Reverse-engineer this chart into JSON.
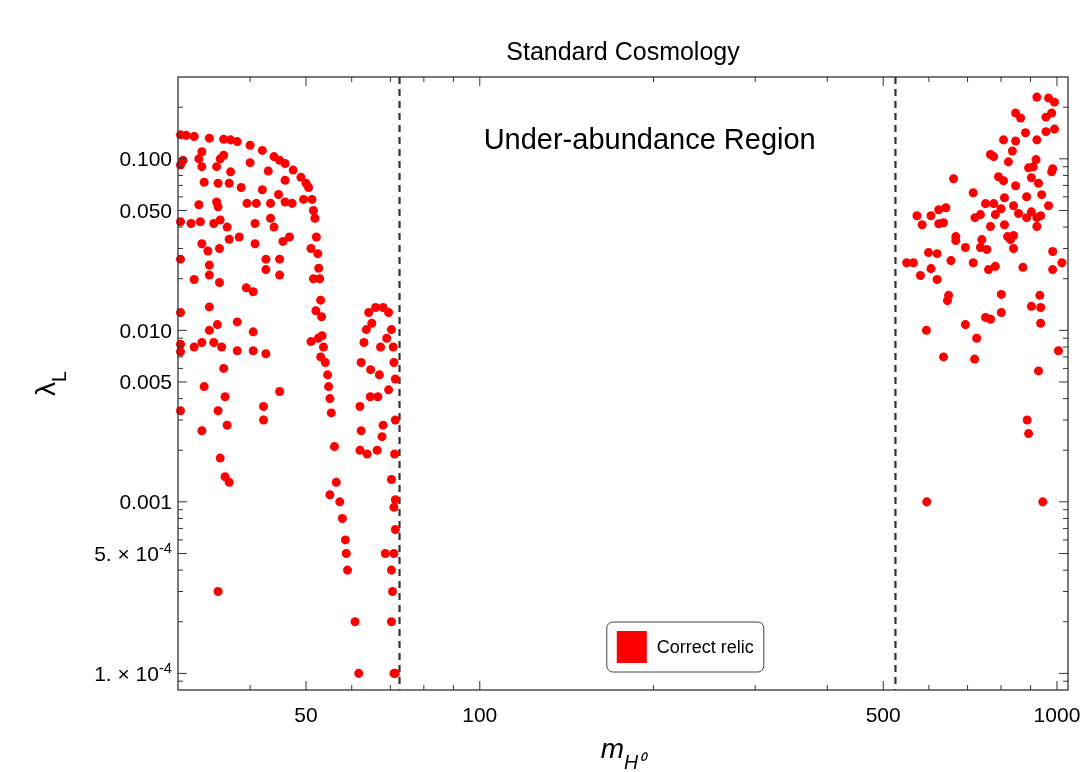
{
  "chart_data": {
    "type": "scatter",
    "title": "Standard Cosmology",
    "xlabel": "m$_{H⁰}$",
    "ylabel": "λ$_{L}$",
    "annotations": [
      "Under-abundance Region"
    ],
    "log": "xy",
    "grid": false,
    "legend": "bottom",
    "marker": "circle",
    "xlim": [
      30,
      1045
    ],
    "ylim": [
      8e-05,
      0.3
    ],
    "xticks": [
      {
        "value": 40,
        "label": null
      },
      50,
      {
        "value": 60,
        "label": null
      },
      {
        "value": 70,
        "label": null
      },
      {
        "value": 80,
        "label": null
      },
      {
        "value": 90,
        "label": null
      },
      100,
      {
        "value": 200,
        "label": null
      },
      {
        "value": 300,
        "label": null
      },
      {
        "value": 400,
        "label": null
      },
      500,
      {
        "value": 600,
        "label": null
      },
      {
        "value": 700,
        "label": null
      },
      {
        "value": 800,
        "label": null
      },
      {
        "value": 900,
        "label": null
      },
      1000
    ],
    "yticks": [
      {
        "value": 0.2,
        "label": null
      },
      {
        "value": 0.1,
        "label": "0.100"
      },
      {
        "value": 0.09,
        "label": null
      },
      {
        "value": 0.08,
        "label": null
      },
      {
        "value": 0.07,
        "label": null
      },
      {
        "value": 0.06,
        "label": null
      },
      {
        "value": 0.05,
        "label": "0.050"
      },
      {
        "value": 0.04,
        "label": null
      },
      {
        "value": 0.03,
        "label": null
      },
      {
        "value": 0.02,
        "label": null
      },
      {
        "value": 0.01,
        "label": "0.010"
      },
      {
        "value": 0.009,
        "label": null
      },
      {
        "value": 0.008,
        "label": null
      },
      {
        "value": 0.007,
        "label": null
      },
      {
        "value": 0.006,
        "label": null
      },
      {
        "value": 0.005,
        "label": "0.005"
      },
      {
        "value": 0.004,
        "label": null
      },
      {
        "value": 0.003,
        "label": null
      },
      {
        "value": 0.002,
        "label": null
      },
      {
        "value": 0.001,
        "label": "0.001"
      },
      {
        "value": 0.0009,
        "label": null
      },
      {
        "value": 0.0008,
        "label": null
      },
      {
        "value": 0.0007,
        "label": null
      },
      {
        "value": 0.0006,
        "label": null
      },
      {
        "value": 0.0005,
        "label": "5. × 10$^{-4}$"
      },
      {
        "value": 0.0004,
        "label": null
      },
      {
        "value": 0.0003,
        "label": null
      },
      {
        "value": 0.0002,
        "label": null
      },
      {
        "value": 0.0001,
        "label": "1. × 10$^{-4}$"
      },
      {
        "value": 9e-05,
        "label": null
      }
    ],
    "ref_lines": [
      {
        "axis": "x",
        "value": 72.6,
        "color": "#333333",
        "line_style": "dashed"
      },
      {
        "axis": "x",
        "value": 525,
        "color": "#333333",
        "line_style": "dashed"
      }
    ],
    "series": [
      {
        "name": "Correct relic",
        "color": "#ff0000",
        "x": [
          30.3,
          31,
          32,
          34,
          36,
          37,
          38,
          40,
          42,
          44,
          45,
          46,
          47.5,
          49,
          50,
          50.5,
          51.2,
          51.5,
          51.8,
          52.1,
          52.4,
          52.6,
          52.8,
          53,
          53.2,
          53.3,
          53.6,
          54,
          54.5,
          54.7,
          55,
          55.3,
          56,
          56.4,
          57.2,
          57.8,
          58.5,
          58.7,
          59,
          55,
          30.6,
          33,
          36,
          40,
          43,
          46,
          47.3,
          49.5,
          51,
          51.5,
          52,
          52.5,
          53,
          51,
          30.3,
          32.6,
          33,
          35,
          35.5,
          37,
          33.3,
          35.2,
          36.8,
          38.6,
          39.5,
          41,
          42,
          43.4,
          44.8,
          46,
          32.6,
          35,
          35.2,
          30.3,
          31.6,
          32.8,
          34.6,
          35.5,
          36.5,
          40.8,
          43.4,
          44,
          36.8,
          38.3,
          40.8,
          33,
          33.8,
          35.4,
          45.6,
          46.8,
          30.3,
          34,
          42.6,
          42.6,
          45,
          34,
          45,
          32,
          35.4,
          39.4,
          40.5,
          30.3,
          34,
          35.1,
          38,
          34,
          40.5,
          30.3,
          32,
          33,
          34.6,
          35.7,
          38,
          40.5,
          42.6,
          30.3,
          36,
          33.3,
          45,
          36.2,
          30.3,
          35.2,
          36.5,
          33,
          42.2,
          42.2,
          35.5,
          36.2,
          36.8,
          35.2,
          60.8,
          61.7,
          63.6,
          64.2,
          66,
          68,
          69.5,
          70.3,
          71,
          62.3,
          62,
          62.3,
          62,
          63.8,
          66.4,
          67.7,
          68,
          64.6,
          66.6,
          64.7,
          67.3,
          70.3,
          71,
          71.4,
          68.6,
          71,
          70.3,
          70.6,
          70.3,
          71,
          71.4,
          71.4,
          71.4,
          71.2,
          71.4,
          63,
          65,
          69,
          70.8,
          67,
          69.5,
          923,
          967,
          990,
          848,
          865,
          957,
          979,
          990,
          882,
          957,
          808,
          848,
          923,
          837,
          767,
          777,
          824,
          920,
          893,
          910,
          979,
          983,
          792,
          808,
          903,
          929,
          848,
          662,
          716,
          941,
          811,
          886,
          752,
          777,
          841,
          967,
          800,
          782,
          858,
          903,
          937,
          737,
          721,
          886,
          923,
          572,
          605,
          624,
          642,
          584,
          624,
          636,
          767,
          811,
          923,
          668,
          668,
          821,
          841,
          831,
          741,
          694,
          737,
          756,
          841,
          599,
          620,
          983,
          549,
          564,
          655,
          716,
          761,
          782,
          873,
          983,
          1020,
          605,
          580,
          620,
          801,
          934,
          649,
          646,
          903,
          937,
          801,
          752,
          767,
          694,
          937,
          594,
          726,
          1006,
          636,
          720,
          929,
          888,
          893,
          595,
          945
        ],
        "values": [
          0.138,
          0.137,
          0.135,
          0.132,
          0.13,
          0.129,
          0.126,
          0.12,
          0.112,
          0.103,
          0.098,
          0.094,
          0.086,
          0.078,
          0.072,
          0.068,
          0.058,
          0.05,
          0.045,
          0.035,
          0.028,
          0.023,
          0.02,
          0.015,
          0.012,
          0.0093,
          0.008,
          0.0065,
          0.0055,
          0.0047,
          0.004,
          0.0033,
          0.0021,
          0.0013,
          0.001,
          0.0008,
          0.0006,
          0.0005,
          0.0004,
          0.0011,
          0.098,
          0.11,
          0.105,
          0.095,
          0.085,
          0.075,
          0.055,
          0.058,
          0.03,
          0.02,
          0.013,
          0.009,
          0.007,
          0.0086,
          0.092,
          0.1,
          0.09,
          0.09,
          0.1,
          0.084,
          0.073,
          0.072,
          0.072,
          0.068,
          0.055,
          0.055,
          0.066,
          0.055,
          0.062,
          0.056,
          0.054,
          0.056,
          0.0525,
          0.043,
          0.042,
          0.043,
          0.042,
          0.044,
          0.04,
          0.042,
          0.045,
          0.04,
          0.034,
          0.035,
          0.032,
          0.032,
          0.029,
          0.03,
          0.033,
          0.035,
          0.026,
          0.024,
          0.026,
          0.0226,
          0.026,
          0.021,
          0.021,
          0.0198,
          0.019,
          0.0177,
          0.0168,
          0.0127,
          0.0137,
          0.0108,
          0.0112,
          0.01,
          0.0098,
          0.0083,
          0.008,
          0.0085,
          0.0085,
          0.008,
          0.0076,
          0.0076,
          0.0073,
          0.0075,
          0.006,
          0.0047,
          0.0044,
          0.0041,
          0.0034,
          0.0034,
          0.0028,
          0.0026,
          0.0036,
          0.003,
          0.0018,
          0.0014,
          0.0013,
          0.0003,
          0.0002,
          0.0001,
          0.0101,
          0.0127,
          0.0136,
          0.0136,
          0.0127,
          0.0101,
          0.0065,
          0.0065,
          0.0036,
          0.0026,
          0.002,
          0.0019,
          0.002,
          0.0024,
          0.0028,
          0.0041,
          0.0041,
          0.0059,
          0.008,
          0.00135,
          0.00093,
          0.00069,
          0.0005,
          0.0005,
          0.0004,
          0.0003,
          0.0002,
          0.0001,
          0.0001,
          0.0052,
          0.003,
          0.0019,
          0.00103,
          0.0085,
          0.011,
          0.009,
          0.008,
          0.0055,
          0.0045,
          0.229,
          0.226,
          0.214,
          0.185,
          0.173,
          0.175,
          0.185,
          0.149,
          0.142,
          0.144,
          0.129,
          0.127,
          0.129,
          0.111,
          0.106,
          0.103,
          0.096,
          0.099,
          0.0886,
          0.0898,
          0.084,
          0.0875,
          0.0786,
          0.0745,
          0.0776,
          0.072,
          0.0697,
          0.0765,
          0.0634,
          0.0618,
          0.0593,
          0.0601,
          0.0548,
          0.0548,
          0.0533,
          0.0533,
          0.0512,
          0.0473,
          0.048,
          0.0491,
          0.0466,
          0.0473,
          0.0454,
          0.0454,
          0.0454,
          0.0466,
          0.0466,
          0.0505,
          0.0519,
          0.0413,
          0.0418,
          0.0424,
          0.0403,
          0.0413,
          0.0403,
          0.0352,
          0.0334,
          0.0352,
          0.0357,
          0.0338,
          0.0338,
          0.0304,
          0.0304,
          0.0296,
          0.03,
          0.0284,
          0.028,
          0.0288,
          0.0248,
          0.0248,
          0.0255,
          0.0248,
          0.0226,
          0.0236,
          0.0233,
          0.0226,
          0.0248,
          0.0229,
          0.0209,
          0.0198,
          0.0162,
          0.016,
          0.016,
          0.0149,
          0.0138,
          0.0136,
          0.0127,
          0.0119,
          0.0116,
          0.0108,
          0.011,
          0.01,
          0.009,
          0.0076,
          0.007,
          0.0068,
          0.0058,
          0.003,
          0.0025,
          0.001,
          0.001
        ]
      }
    ]
  }
}
